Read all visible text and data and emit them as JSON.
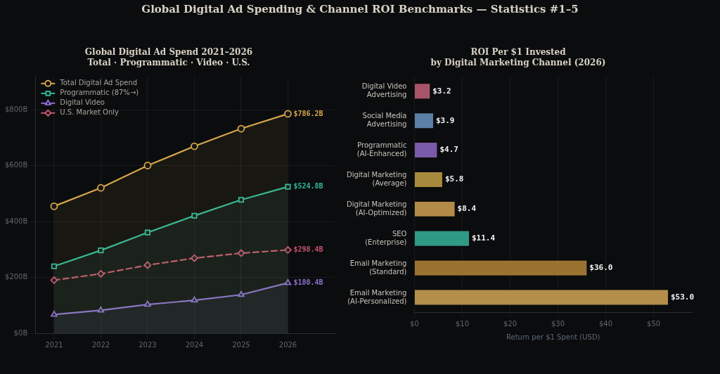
{
  "chart_data": [
    {
      "type": "other",
      "title": "Global Digital Ad Spending & Channel ROI Benchmarks — Statistics #1–5"
    },
    {
      "type": "line",
      "title": "Global Digital Ad Spend 2021–2026\nTotal · Programmatic · Video · U.S.",
      "x": [
        2021,
        2022,
        2023,
        2024,
        2025,
        2026
      ],
      "series": [
        {
          "name": "Total Digital Ad Spend",
          "type": "area",
          "color": "#d4a64a",
          "marker": "circle",
          "values": [
            455,
            521,
            601,
            670,
            733,
            786.2
          ],
          "value_labels": [
            null,
            null,
            null,
            null,
            null,
            "$786.2B"
          ]
        },
        {
          "name": "Programmatic (87%→)",
          "type": "area",
          "color": "#2fb89a",
          "marker": "square",
          "values": [
            240,
            297,
            361,
            421,
            478,
            524.8
          ],
          "value_labels": [
            null,
            null,
            null,
            null,
            null,
            "$524.8B"
          ]
        },
        {
          "name": "Digital Video",
          "type": "area",
          "color": "#8a6fcf",
          "marker": "triangle",
          "values": [
            67,
            82,
            103,
            118,
            138,
            180.4
          ],
          "value_labels": [
            null,
            null,
            null,
            null,
            null,
            "$180.4B"
          ]
        },
        {
          "name": "U.S. Market Only",
          "type": "line",
          "line_style": "dashed",
          "color": "#c8546e",
          "marker": "diamond",
          "values": [
            190,
            213,
            244,
            269,
            287,
            298.4
          ],
          "value_labels": [
            null,
            null,
            null,
            null,
            null,
            "$298.4B"
          ]
        }
      ],
      "xlim": [
        2020.6,
        2027
      ],
      "xticks": [
        2021,
        2022,
        2023,
        2024,
        2025,
        2026
      ],
      "ylim": [
        0,
        920
      ],
      "yticks": [
        {
          "value": 0,
          "label": "$0B"
        },
        {
          "value": 200,
          "label": "$200B"
        },
        {
          "value": 400,
          "label": "$400B"
        },
        {
          "value": 600,
          "label": "$600B"
        },
        {
          "value": 800,
          "label": "$800B"
        }
      ],
      "grid": true,
      "legend": "top left"
    },
    {
      "type": "bar",
      "orientation": "horizontal",
      "title": "ROI Per $1 Invested\nby Digital Marketing Channel (2026)",
      "xlabel": "Return per $1 Spent (USD)",
      "categories": [
        "Digital Video Advertising",
        "Social Media Advertising",
        "Programmatic (AI-Enhanced)",
        "Digital Marketing (Average)",
        "Digital Marketing (AI-Optimized)",
        "SEO (Enterprise)",
        "Email Marketing (Standard)",
        "Email Marketing (AI-Personalized)"
      ],
      "values": [
        3.2,
        3.9,
        4.7,
        5.8,
        8.4,
        11.4,
        36.0,
        53.0
      ],
      "value_labels": [
        "$3.2",
        "$3.9",
        "$4.7",
        "$5.8",
        "$8.4",
        "$11.4",
        "$36.0",
        "$53.0"
      ],
      "colors": [
        "#a85468",
        "#5b7fa6",
        "#7a5aaa",
        "#a88a3c",
        "#b38b48",
        "#2f9a86",
        "#9a7333",
        "#b38f4a"
      ],
      "xlim": [
        0,
        58
      ],
      "xticks": [
        {
          "value": 0,
          "label": "$0"
        },
        {
          "value": 10,
          "label": "$10"
        },
        {
          "value": 20,
          "label": "$20"
        },
        {
          "value": 30,
          "label": "$30"
        },
        {
          "value": 40,
          "label": "$40"
        },
        {
          "value": 50,
          "label": "$50"
        }
      ],
      "grid": "x"
    }
  ]
}
